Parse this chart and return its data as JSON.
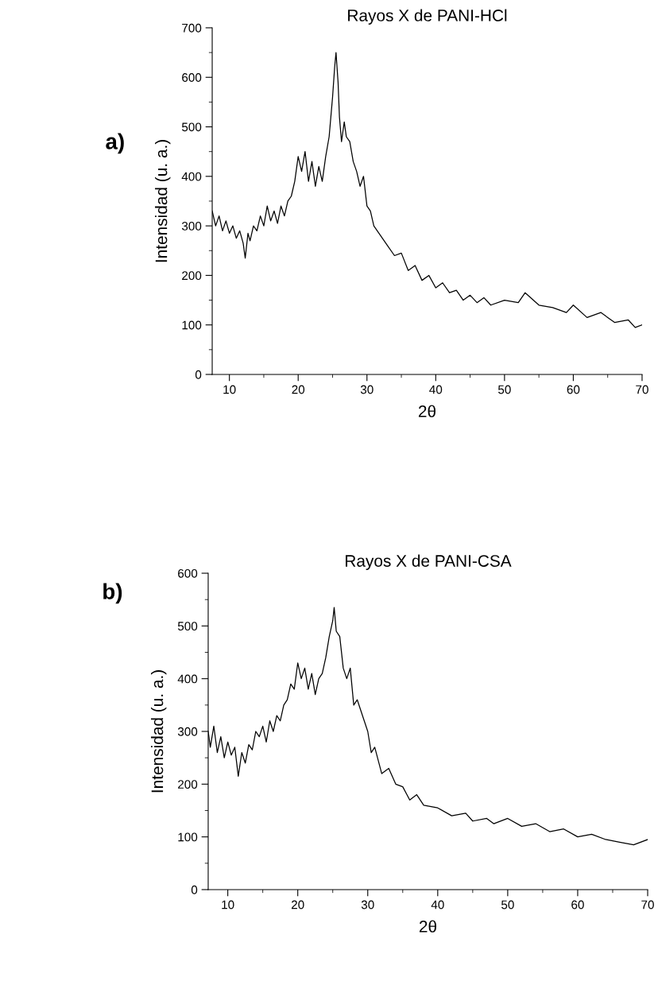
{
  "chart_data": [
    {
      "type": "line",
      "title": "Rayos X de PANI-HCl",
      "xlabel": "2θ",
      "ylabel": "Intensidad (u. a.)",
      "annotations": [
        "a)"
      ],
      "xlim": [
        7.5,
        70
      ],
      "ylim": [
        0,
        700
      ],
      "xticks": [
        10,
        {
          "value": 15,
          "label": null
        },
        20,
        {
          "value": 25,
          "label": null
        },
        30,
        {
          "value": 35,
          "label": null
        },
        40,
        {
          "value": 45,
          "label": null
        },
        50,
        {
          "value": 55,
          "label": null
        },
        60,
        {
          "value": 65,
          "label": null
        },
        70
      ],
      "yticks": [
        0,
        {
          "value": 50,
          "label": null
        },
        100,
        {
          "value": 150,
          "label": null
        },
        200,
        {
          "value": 250,
          "label": null
        },
        300,
        {
          "value": 350,
          "label": null
        },
        400,
        {
          "value": 450,
          "label": null
        },
        500,
        {
          "value": 550,
          "label": null
        },
        600,
        {
          "value": 650,
          "label": null
        },
        700
      ],
      "grid": false,
      "legend": false,
      "marker": "none",
      "line_style": "solid",
      "series": [
        {
          "color": "#000000",
          "x": [
            7.5,
            8,
            8.5,
            9,
            9.5,
            10,
            10.5,
            11,
            11.5,
            12,
            12.3,
            12.7,
            13,
            13.5,
            14,
            14.5,
            15,
            15.5,
            16,
            16.5,
            17,
            17.5,
            18,
            18.5,
            19,
            19.5,
            20,
            20.5,
            21,
            21.5,
            22,
            22.5,
            23,
            23.5,
            24,
            24.5,
            25,
            25.3,
            25.5,
            25.8,
            26,
            26.3,
            26.7,
            27,
            27.5,
            28,
            28.5,
            29,
            29.5,
            30,
            30.5,
            31,
            32,
            33,
            34,
            35,
            36,
            37,
            38,
            39,
            40,
            41,
            42,
            43,
            44,
            45,
            46,
            47,
            48,
            50,
            52,
            53,
            55,
            57,
            59,
            60,
            62,
            64,
            66,
            68,
            69,
            70
          ],
          "values": [
            330,
            300,
            320,
            290,
            310,
            285,
            300,
            275,
            290,
            265,
            235,
            285,
            270,
            300,
            290,
            320,
            300,
            340,
            310,
            330,
            305,
            340,
            320,
            350,
            360,
            390,
            440,
            410,
            450,
            390,
            430,
            380,
            420,
            390,
            440,
            480,
            560,
            620,
            650,
            590,
            520,
            470,
            510,
            480,
            470,
            430,
            410,
            380,
            400,
            340,
            330,
            300,
            280,
            260,
            240,
            245,
            210,
            220,
            190,
            200,
            175,
            185,
            165,
            170,
            150,
            160,
            145,
            155,
            140,
            150,
            145,
            165,
            140,
            135,
            125,
            140,
            115,
            125,
            105,
            110,
            95,
            100
          ]
        }
      ]
    },
    {
      "type": "line",
      "title": "Rayos X de PANI-CSA",
      "xlabel": "2θ",
      "ylabel": "Intensidad (u. a.)",
      "annotations": [
        "b)"
      ],
      "xlim": [
        7.2,
        70
      ],
      "ylim": [
        0,
        600
      ],
      "xticks": [
        10,
        {
          "value": 15,
          "label": null
        },
        20,
        {
          "value": 25,
          "label": null
        },
        30,
        {
          "value": 35,
          "label": null
        },
        40,
        {
          "value": 45,
          "label": null
        },
        50,
        {
          "value": 55,
          "label": null
        },
        60,
        {
          "value": 65,
          "label": null
        },
        70
      ],
      "yticks": [
        0,
        {
          "value": 50,
          "label": null
        },
        100,
        {
          "value": 150,
          "label": null
        },
        200,
        {
          "value": 250,
          "label": null
        },
        300,
        {
          "value": 350,
          "label": null
        },
        400,
        {
          "value": 450,
          "label": null
        },
        500,
        {
          "value": 550,
          "label": null
        },
        600
      ],
      "grid": false,
      "legend": false,
      "marker": "none",
      "line_style": "solid",
      "series": [
        {
          "color": "#000000",
          "x": [
            7.2,
            7.5,
            8,
            8.5,
            9,
            9.5,
            10,
            10.5,
            11,
            11.5,
            12,
            12.5,
            13,
            13.5,
            14,
            14.5,
            15,
            15.5,
            16,
            16.5,
            17,
            17.5,
            18,
            18.5,
            19,
            19.5,
            20,
            20.5,
            21,
            21.5,
            22,
            22.5,
            23,
            23.5,
            24,
            24.5,
            25,
            25.2,
            25.5,
            26,
            26.5,
            27,
            27.5,
            28,
            28.5,
            29,
            29.5,
            30,
            30.5,
            31,
            32,
            33,
            34,
            35,
            36,
            37,
            38,
            40,
            42,
            44,
            45,
            47,
            48,
            50,
            52,
            54,
            56,
            58,
            60,
            62,
            64,
            66,
            68,
            70
          ],
          "values": [
            300,
            270,
            310,
            260,
            290,
            250,
            280,
            255,
            270,
            215,
            260,
            240,
            275,
            265,
            300,
            290,
            310,
            280,
            320,
            300,
            330,
            320,
            350,
            360,
            390,
            380,
            430,
            400,
            420,
            380,
            410,
            370,
            400,
            410,
            440,
            480,
            510,
            535,
            490,
            480,
            420,
            400,
            420,
            350,
            360,
            340,
            320,
            300,
            260,
            270,
            220,
            230,
            200,
            195,
            170,
            180,
            160,
            155,
            140,
            145,
            130,
            135,
            125,
            135,
            120,
            125,
            110,
            115,
            100,
            105,
            95,
            90,
            85,
            95
          ]
        }
      ]
    }
  ]
}
